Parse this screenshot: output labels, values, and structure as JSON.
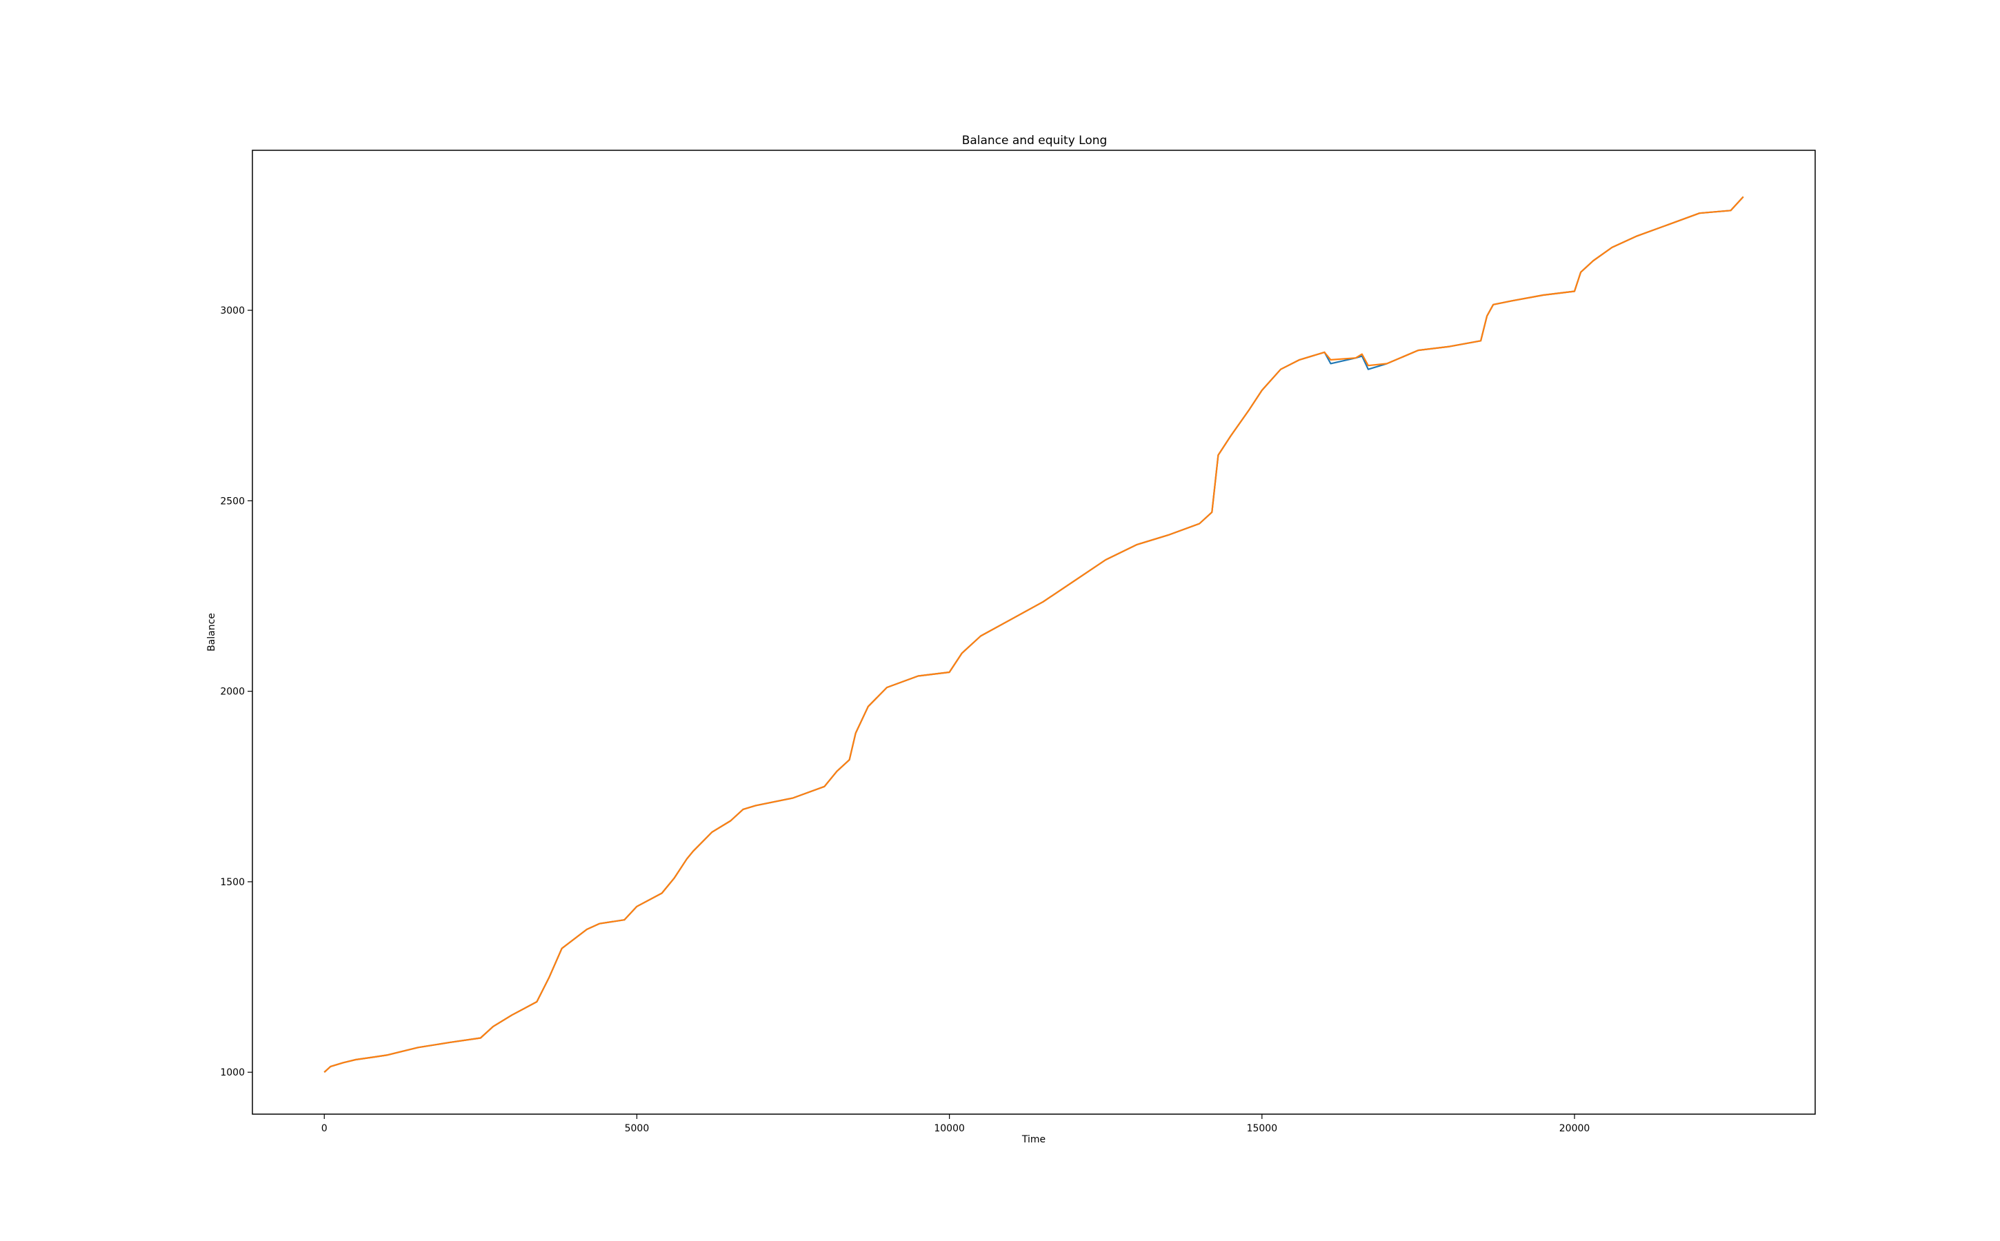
{
  "chart_data": {
    "type": "line",
    "title": "Balance and equity Long",
    "xlabel": "Time",
    "ylabel": "Balance",
    "xlim": [
      -1150,
      23850
    ],
    "ylim": [
      890,
      3420
    ],
    "xticks": [
      0,
      5000,
      10000,
      15000,
      20000
    ],
    "yticks": [
      1000,
      1500,
      2000,
      2500,
      3000
    ],
    "grid": false,
    "legend": "none",
    "colors": {
      "equity": "#1f77b4",
      "balance": "#ff7f0e"
    },
    "series": [
      {
        "key": "equity",
        "x": [
          0,
          100,
          300,
          500,
          800,
          1000,
          1500,
          2000,
          2500,
          2700,
          3000,
          3400,
          3600,
          3800,
          4200,
          4400,
          4800,
          5000,
          5400,
          5600,
          5800,
          5900,
          6200,
          6500,
          6700,
          6900,
          7500,
          8000,
          8200,
          8400,
          8500,
          8700,
          9000,
          9500,
          10000,
          10200,
          10500,
          11000,
          11500,
          12000,
          12500,
          13000,
          13500,
          14000,
          14200,
          14300,
          14500,
          14800,
          15000,
          15300,
          15600,
          16000,
          16100,
          16500,
          16600,
          16700,
          17000,
          17500,
          18000,
          18500,
          18600,
          18700,
          19000,
          19500,
          20000,
          20100,
          20300,
          20600,
          21000,
          21500,
          22000,
          22500,
          22700
        ],
        "values": [
          1000,
          1015,
          1025,
          1033,
          1040,
          1045,
          1065,
          1078,
          1090,
          1120,
          1150,
          1185,
          1250,
          1325,
          1375,
          1390,
          1400,
          1435,
          1470,
          1510,
          1560,
          1580,
          1630,
          1660,
          1690,
          1700,
          1720,
          1750,
          1790,
          1820,
          1890,
          1960,
          2010,
          2040,
          2050,
          2100,
          2145,
          2190,
          2235,
          2290,
          2345,
          2385,
          2410,
          2440,
          2470,
          2620,
          2670,
          2740,
          2790,
          2845,
          2870,
          2890,
          2860,
          2875,
          2880,
          2845,
          2860,
          2895,
          2905,
          2920,
          2985,
          3015,
          3025,
          3040,
          3050,
          3100,
          3130,
          3165,
          3195,
          3225,
          3255,
          3262,
          3298
        ]
      },
      {
        "key": "balance",
        "x": [
          0,
          100,
          300,
          500,
          800,
          1000,
          1500,
          2000,
          2500,
          2700,
          3000,
          3400,
          3600,
          3800,
          4200,
          4400,
          4800,
          5000,
          5400,
          5600,
          5800,
          5900,
          6200,
          6500,
          6700,
          6900,
          7500,
          8000,
          8200,
          8400,
          8500,
          8700,
          9000,
          9500,
          10000,
          10200,
          10500,
          11000,
          11500,
          12000,
          12500,
          13000,
          13500,
          14000,
          14200,
          14300,
          14500,
          14800,
          15000,
          15300,
          15600,
          16000,
          16100,
          16500,
          16600,
          16700,
          17000,
          17500,
          18000,
          18500,
          18600,
          18700,
          19000,
          19500,
          20000,
          20100,
          20300,
          20600,
          21000,
          21500,
          22000,
          22500,
          22700
        ],
        "values": [
          1000,
          1015,
          1025,
          1033,
          1040,
          1045,
          1065,
          1078,
          1090,
          1120,
          1150,
          1185,
          1250,
          1325,
          1375,
          1390,
          1400,
          1435,
          1470,
          1510,
          1560,
          1580,
          1630,
          1660,
          1690,
          1700,
          1720,
          1750,
          1790,
          1820,
          1890,
          1960,
          2010,
          2040,
          2050,
          2100,
          2145,
          2190,
          2235,
          2290,
          2345,
          2385,
          2410,
          2440,
          2470,
          2620,
          2670,
          2740,
          2790,
          2845,
          2870,
          2890,
          2870,
          2875,
          2885,
          2855,
          2860,
          2895,
          2905,
          2920,
          2985,
          3015,
          3025,
          3040,
          3050,
          3100,
          3130,
          3165,
          3195,
          3225,
          3255,
          3262,
          3298
        ]
      }
    ]
  }
}
